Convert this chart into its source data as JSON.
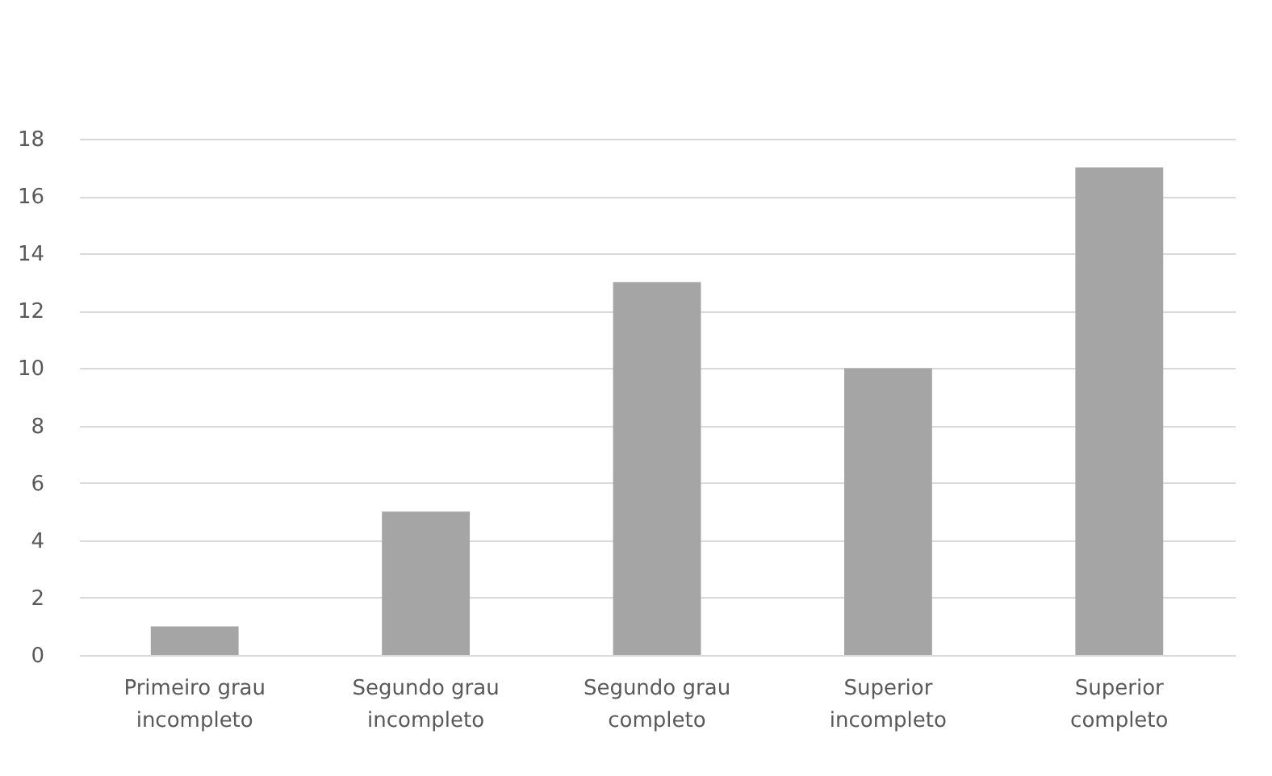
{
  "chart_data": {
    "type": "bar",
    "categories": [
      "Primeiro grau incompleto",
      "Segundo grau incompleto",
      "Segundo grau completo",
      "Superior incompleto",
      "Superior completo"
    ],
    "values": [
      1,
      5,
      13,
      10,
      17
    ],
    "color": "#a5a5a5",
    "ylim": [
      0,
      18
    ],
    "yticks": [
      0,
      2,
      4,
      6,
      8,
      10,
      12,
      14,
      16,
      18
    ],
    "grid": "y"
  }
}
